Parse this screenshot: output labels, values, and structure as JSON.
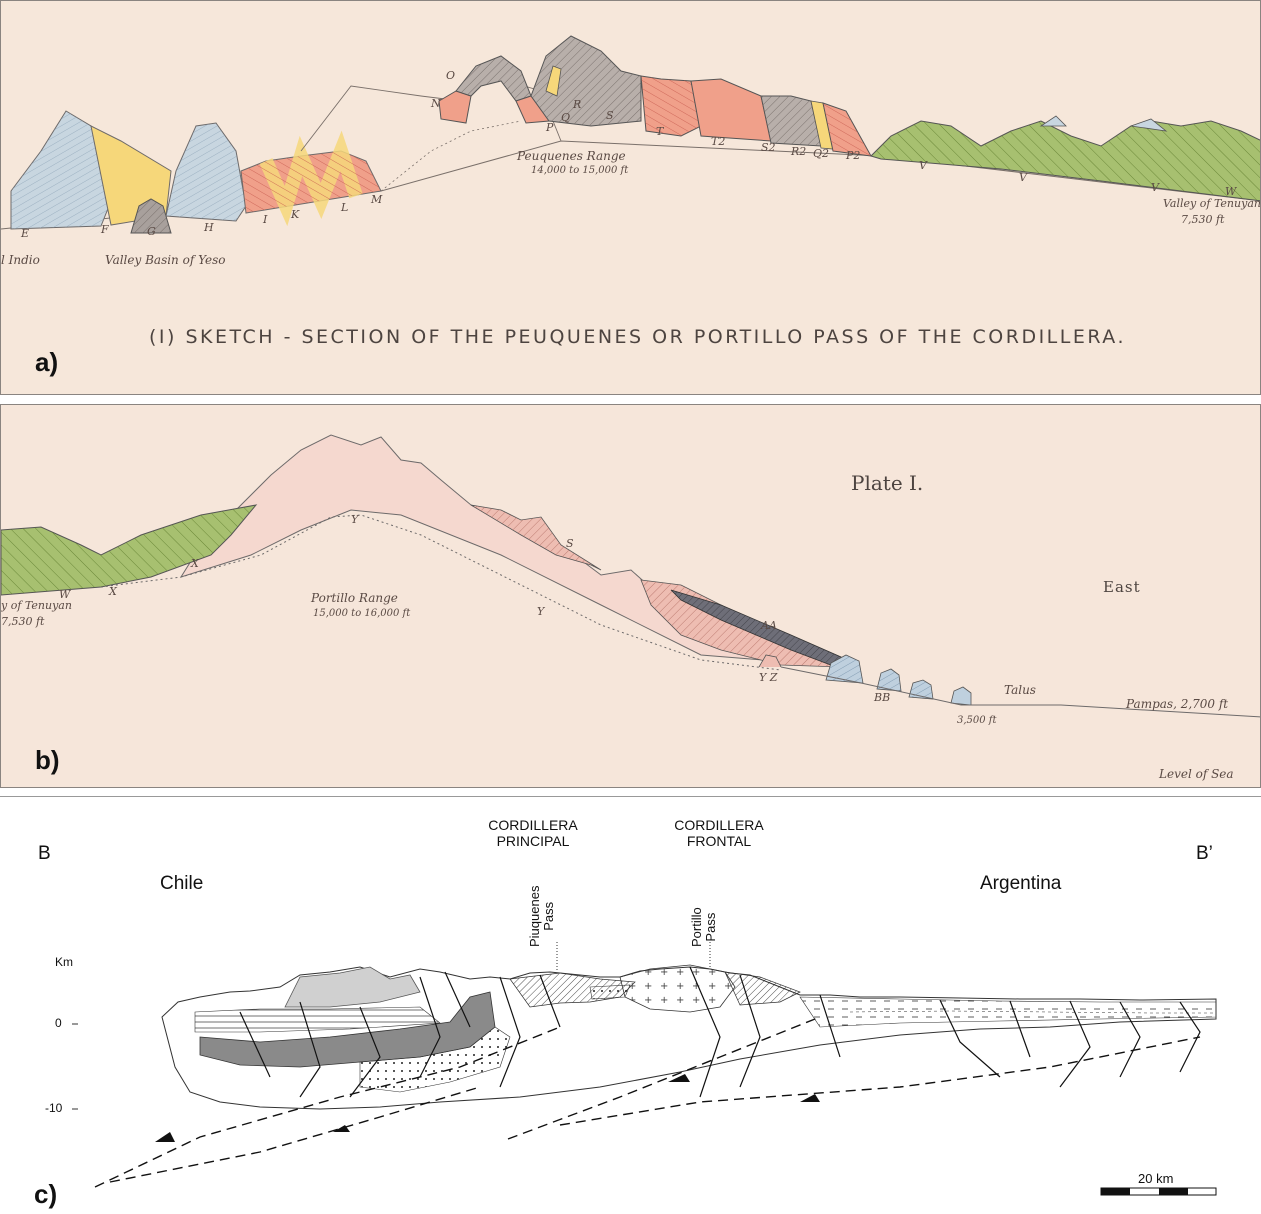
{
  "panel_a": {
    "letter": "a)",
    "caption": "(I) SKETCH - SECTION OF THE PEUQUENES OR PORTILLO PASS OF THE CORDILLERA.",
    "range_name": "Peuquenes Range",
    "range_height": "14,000 to 15,000 ft",
    "valley_basin": "Valley Basin of Yeso",
    "indio": "l Indio",
    "valley_tenuyan": "Valley of Tenuyan",
    "valley_tenuyan_height": "7,530 ft",
    "letters": [
      "E",
      "F",
      "G",
      "H",
      "I",
      "K",
      "L",
      "M",
      "N",
      "O",
      "P",
      "Q",
      "R",
      "S",
      "T",
      "T2",
      "S2",
      "R2",
      "Q2",
      "P2",
      "V",
      "V",
      "V",
      "W"
    ]
  },
  "panel_b": {
    "letter": "b)",
    "plate": "Plate I.",
    "east": "East",
    "range_name": "Portillo Range",
    "range_height": "15,000 to 16,000 ft",
    "valley_tenuyan": "y of Tenuyan",
    "valley_height": "7,530 ft",
    "talus": "Talus",
    "pampas": "Pampas, 2,700 ft",
    "elevation_3500": "3,500 ft",
    "level_of_sea": "Level of Sea",
    "letters": [
      "W",
      "X",
      "X",
      "Y",
      "Y",
      "S",
      "AA",
      "BB",
      "Y Z"
    ]
  },
  "panel_c": {
    "letter": "c)",
    "b_start": "B",
    "b_end": "B’",
    "chile": "Chile",
    "argentina": "Argentina",
    "principal": [
      "CORDILLERA",
      "PRINCIPAL"
    ],
    "frontal": [
      "CORDILLERA",
      "FRONTAL"
    ],
    "piuquenes": [
      "Piuquenes",
      "Pass"
    ],
    "portillo": [
      "Portillo",
      "Pass"
    ],
    "km": "Km",
    "tick_0": "0",
    "tick_minus10": "-10",
    "scale": "20 km"
  }
}
